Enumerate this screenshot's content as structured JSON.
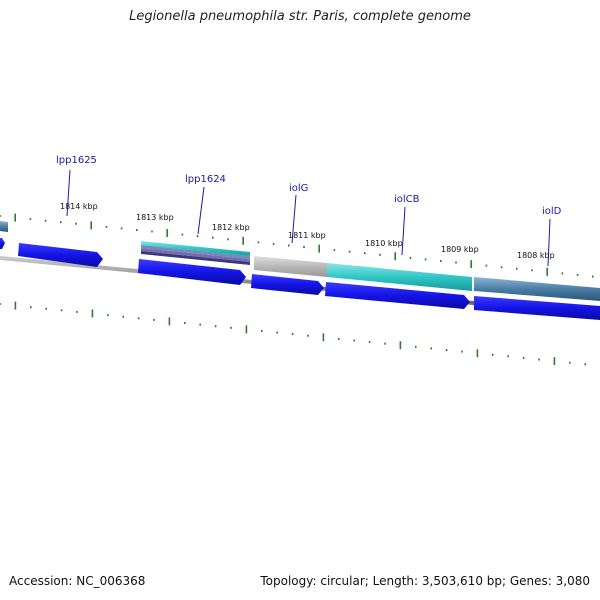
{
  "title": "Legionella pneumophila str. Paris, complete genome",
  "footer": {
    "accession": "Accession: NC_006368",
    "summary": "Topology: circular; Length: 3,503,610 bp; Genes: 3,080"
  },
  "colors": {
    "cds": "#1414e6",
    "backbone": "#808080",
    "tick": "#2e7d2e",
    "gene_label": "#1a1aa8",
    "feature_steel": "#4a7ea6",
    "feature_teal": "#30c6c6",
    "feature_grey": "#b8b8b8"
  },
  "scale_labels": [
    "1814 kbp",
    "1813 kbp",
    "1812 kbp",
    "1811 kbp",
    "1810 kbp",
    "1809 kbp",
    "1808 kbp"
  ],
  "gene_labels": [
    "lpp1625",
    "lpp1624",
    "iolG",
    "iolCB",
    "iolD"
  ]
}
